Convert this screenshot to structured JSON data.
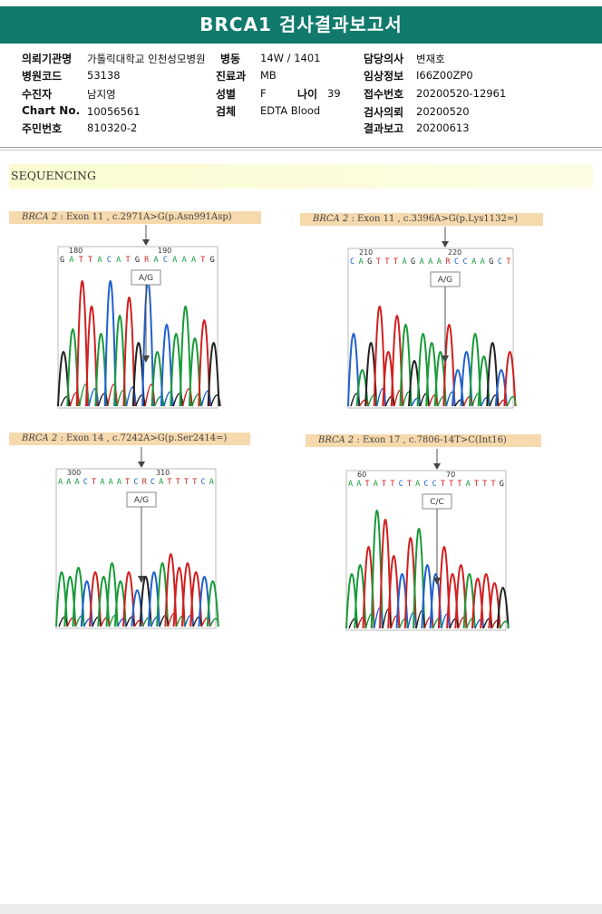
{
  "report": {
    "title": "BRCA1 검사결과보고서"
  },
  "patient": {
    "institution_label": "의뢰기관명",
    "institution": "가톨릭대학교 인천성모병원",
    "ward_label": "병동",
    "ward": "14W / 1401",
    "doctor_label": "담당의사",
    "doctor": "변재호",
    "hospital_code_label": "병원코드",
    "hospital_code": "53138",
    "department_label": "진료과",
    "department": "MB",
    "clinical_info_label": "임상정보",
    "clinical_info": "I66Z00ZP0",
    "examinee_label": "수진자",
    "examinee": "남지영",
    "sex_label": "성별",
    "sex": "F",
    "age_label": "나이",
    "age": "39",
    "receipt_no_label": "접수번호",
    "receipt_no": "20200520-12961",
    "chart_no_label": "Chart No.",
    "chart_no": "10056561",
    "specimen_label": "검체",
    "specimen": "EDTA Blood",
    "request_date_label": "검사의뢰",
    "request_date": "20200520",
    "id_number_label": "주민번호",
    "id_number": "810320-2",
    "report_date_label": "결과보고",
    "report_date": "20200613"
  },
  "section": {
    "sequencing_label": "SEQUENCING"
  },
  "variants": [
    {
      "gene": "BRCA 2",
      "detail": " : Exon 11 , c.2971A>G(p.Asn991Asp)",
      "genotype": "A/G",
      "pos_start": "180",
      "pos_end": "190",
      "bases": "GATTACATGRACAAATG"
    },
    {
      "gene": "BRCA 2",
      "detail": " : Exon 11 , c.3396A>G(p.Lys1132=)",
      "genotype": "A/G",
      "pos_start": "210",
      "pos_end": "220",
      "bases": "CAGTTTAGAAARCCAAGCT"
    },
    {
      "gene": "BRCA 2",
      "detail": " : Exon 14 , c.7242A>G(p.Ser2414=)",
      "genotype": "A/G",
      "pos_start": "300",
      "pos_end": "310",
      "bases": "AAACTAAATCRCATTTTCA"
    },
    {
      "gene": "BRCA 2",
      "detail": " : Exon 17 , c.7806-14T>C(Int16)",
      "genotype": "C/C",
      "pos_start": "60",
      "pos_end": "70",
      "bases": "AATATTCTACCTTTATTTG"
    }
  ],
  "colors": {
    "A": "#1a9a3a",
    "C": "#2060d0",
    "G": "#222222",
    "T": "#d02020",
    "header": "#117a6c"
  }
}
